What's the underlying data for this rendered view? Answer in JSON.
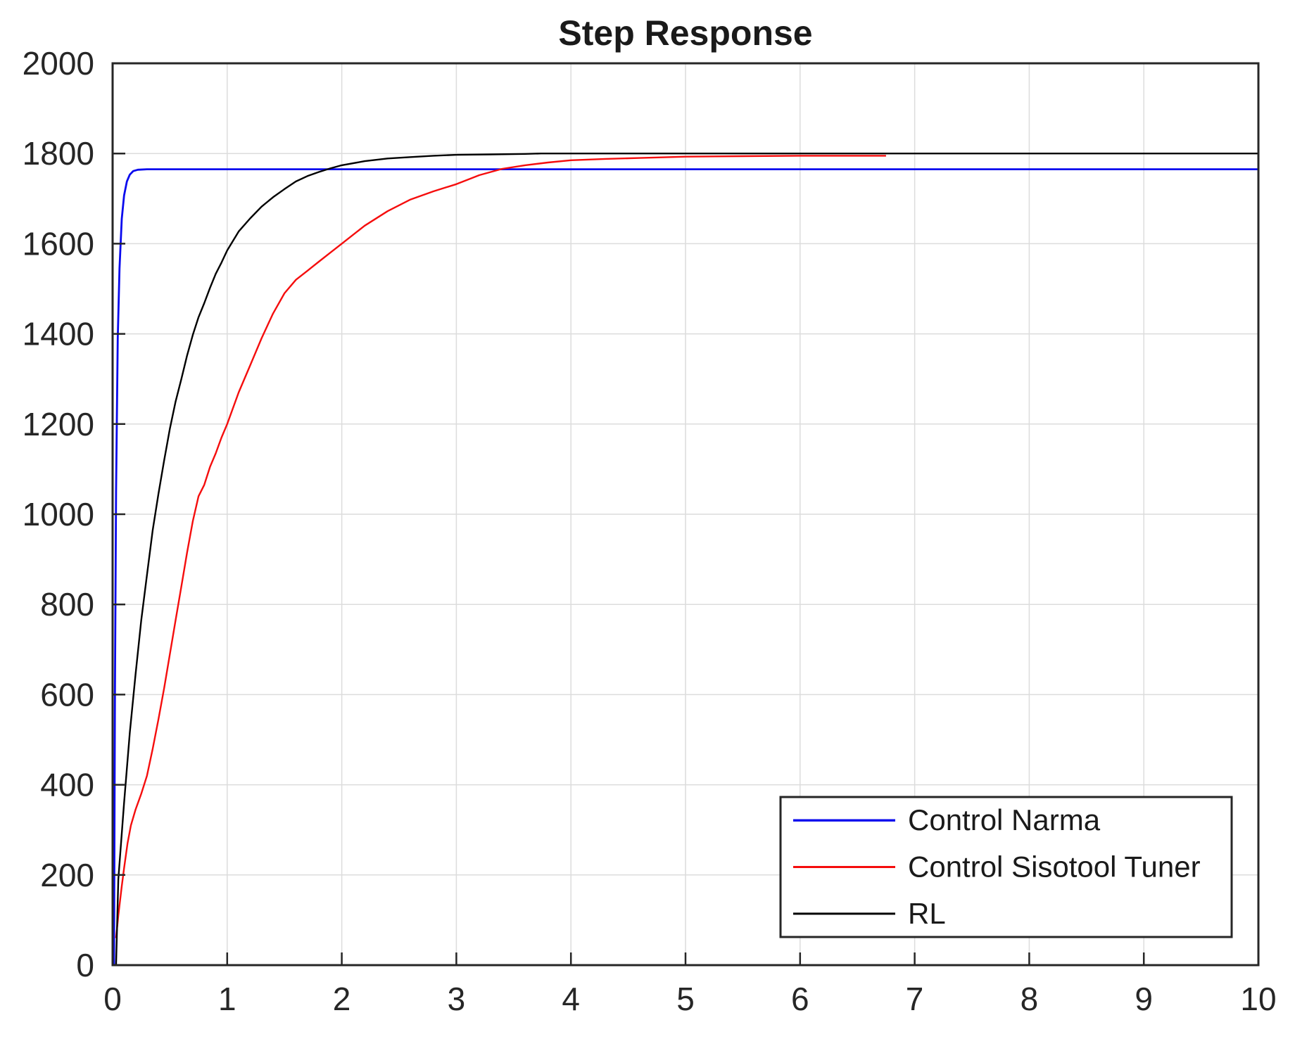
{
  "chart_data": {
    "type": "line",
    "title": "Step Response",
    "xlabel": "",
    "ylabel": "",
    "xlim": [
      0,
      10
    ],
    "ylim": [
      0,
      2000
    ],
    "xticks": [
      0,
      1,
      2,
      3,
      4,
      5,
      6,
      7,
      8,
      9,
      10
    ],
    "yticks": [
      0,
      200,
      400,
      600,
      800,
      1000,
      1200,
      1400,
      1600,
      1800,
      2000
    ],
    "grid": true,
    "grid_color": "#dcdcdc",
    "axis_color": "#262626",
    "background_color": "#ffffff",
    "legend_position": "bottom-right",
    "series": [
      {
        "name": "Control Narma",
        "color": "#0a0aee",
        "width": 2.8,
        "points": [
          [
            0.012,
            0
          ],
          [
            0.02,
            600
          ],
          [
            0.03,
            1050
          ],
          [
            0.045,
            1390
          ],
          [
            0.06,
            1545
          ],
          [
            0.08,
            1655
          ],
          [
            0.1,
            1707
          ],
          [
            0.125,
            1738
          ],
          [
            0.15,
            1753
          ],
          [
            0.18,
            1761
          ],
          [
            0.22,
            1764
          ],
          [
            0.3,
            1765
          ],
          [
            1.0,
            1765
          ],
          [
            2.0,
            1765
          ],
          [
            4.0,
            1765
          ],
          [
            6.0,
            1765
          ],
          [
            8.0,
            1765
          ],
          [
            10.0,
            1765
          ]
        ]
      },
      {
        "name": "Control Sisotool Tuner",
        "color": "#f50d0d",
        "width": 2.4,
        "points": [
          [
            0.03,
            60
          ],
          [
            0.05,
            110
          ],
          [
            0.08,
            175
          ],
          [
            0.1,
            215
          ],
          [
            0.13,
            270
          ],
          [
            0.16,
            310
          ],
          [
            0.2,
            345
          ],
          [
            0.25,
            380
          ],
          [
            0.3,
            420
          ],
          [
            0.35,
            480
          ],
          [
            0.4,
            545
          ],
          [
            0.45,
            615
          ],
          [
            0.5,
            690
          ],
          [
            0.55,
            765
          ],
          [
            0.6,
            840
          ],
          [
            0.65,
            915
          ],
          [
            0.7,
            985
          ],
          [
            0.75,
            1040
          ],
          [
            0.8,
            1065
          ],
          [
            0.85,
            1105
          ],
          [
            0.9,
            1135
          ],
          [
            0.95,
            1170
          ],
          [
            1.0,
            1200
          ],
          [
            1.1,
            1270
          ],
          [
            1.2,
            1330
          ],
          [
            1.3,
            1390
          ],
          [
            1.4,
            1445
          ],
          [
            1.5,
            1490
          ],
          [
            1.6,
            1520
          ],
          [
            1.7,
            1540
          ],
          [
            1.8,
            1560
          ],
          [
            1.9,
            1580
          ],
          [
            2.0,
            1600
          ],
          [
            2.2,
            1640
          ],
          [
            2.4,
            1672
          ],
          [
            2.6,
            1698
          ],
          [
            2.8,
            1716
          ],
          [
            3.0,
            1732
          ],
          [
            3.2,
            1752
          ],
          [
            3.4,
            1766
          ],
          [
            3.6,
            1774
          ],
          [
            3.8,
            1780
          ],
          [
            4.0,
            1785
          ],
          [
            4.3,
            1788
          ],
          [
            4.6,
            1790
          ],
          [
            5.0,
            1793
          ],
          [
            5.5,
            1794
          ],
          [
            6.0,
            1795
          ],
          [
            6.75,
            1795
          ]
        ]
      },
      {
        "name": "RL",
        "color": "#000000",
        "width": 2.4,
        "points": [
          [
            0.03,
            0
          ],
          [
            0.05,
            190
          ],
          [
            0.1,
            360
          ],
          [
            0.15,
            515
          ],
          [
            0.2,
            645
          ],
          [
            0.25,
            765
          ],
          [
            0.3,
            865
          ],
          [
            0.35,
            965
          ],
          [
            0.4,
            1045
          ],
          [
            0.45,
            1120
          ],
          [
            0.5,
            1190
          ],
          [
            0.55,
            1250
          ],
          [
            0.6,
            1300
          ],
          [
            0.65,
            1352
          ],
          [
            0.7,
            1398
          ],
          [
            0.75,
            1437
          ],
          [
            0.8,
            1468
          ],
          [
            0.85,
            1502
          ],
          [
            0.9,
            1533
          ],
          [
            0.95,
            1558
          ],
          [
            1.0,
            1585
          ],
          [
            1.1,
            1627
          ],
          [
            1.2,
            1656
          ],
          [
            1.3,
            1682
          ],
          [
            1.4,
            1703
          ],
          [
            1.5,
            1721
          ],
          [
            1.6,
            1738
          ],
          [
            1.7,
            1750
          ],
          [
            1.8,
            1759
          ],
          [
            1.9,
            1767
          ],
          [
            2.0,
            1774
          ],
          [
            2.2,
            1783
          ],
          [
            2.4,
            1789
          ],
          [
            2.6,
            1792
          ],
          [
            2.8,
            1795
          ],
          [
            3.0,
            1797
          ],
          [
            3.3,
            1798
          ],
          [
            3.6,
            1799
          ],
          [
            3.74,
            1800
          ],
          [
            4.0,
            1800
          ],
          [
            5.0,
            1800
          ],
          [
            6.0,
            1800
          ],
          [
            7.0,
            1800
          ],
          [
            8.0,
            1800
          ],
          [
            9.0,
            1800
          ],
          [
            10.0,
            1800
          ]
        ]
      }
    ]
  }
}
